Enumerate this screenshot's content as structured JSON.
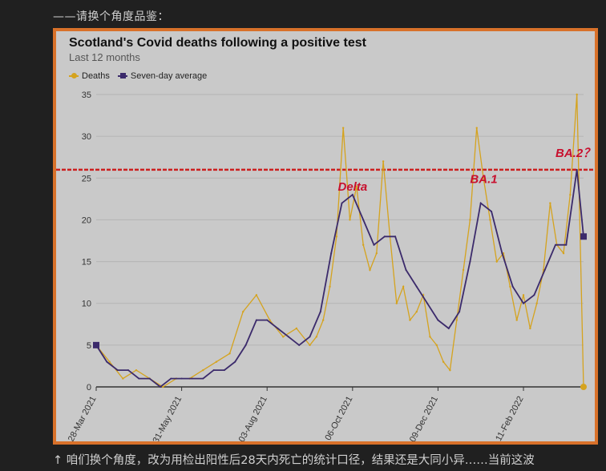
{
  "header": {
    "text": "——请换个角度品鉴："
  },
  "footer": {
    "text": "↑ 咱们换个角度，改为用检出阳性后28天内死亡的统计口径，结果还是大同小异……当前这波"
  },
  "colors": {
    "frame": "#d8712a",
    "plot_bg": "#c9c9c9",
    "deaths": "#d5a31e",
    "average": "#3b2a6b",
    "threshold": "#cc1f1f",
    "annotation": "#c8102e"
  },
  "chart_data": {
    "type": "line",
    "title": "Scotland's Covid deaths following a positive test",
    "subtitle": "Last 12 months",
    "xlabel": "",
    "ylabel": "",
    "ylim": [
      0,
      35
    ],
    "yticks": [
      0,
      5,
      10,
      15,
      20,
      25,
      30,
      35
    ],
    "grid": true,
    "legend_placement": "top-left",
    "x_start": "2021-03-28",
    "x_end": "2022-03-28",
    "xticks": [
      "28-Mar 2021",
      "31-May 2021",
      "03-Aug 2021",
      "06-Oct 2021",
      "09-Dec 2021",
      "11-Feb 2022"
    ],
    "xtick_dates": [
      "2021-03-28",
      "2021-05-31",
      "2021-08-03",
      "2021-10-06",
      "2021-12-09",
      "2022-02-11"
    ],
    "series": [
      {
        "name": "Deaths",
        "x": [
          "2021-03-28",
          "2021-04-07",
          "2021-04-17",
          "2021-04-27",
          "2021-05-07",
          "2021-05-17",
          "2021-05-27",
          "2021-06-06",
          "2021-06-16",
          "2021-06-26",
          "2021-07-06",
          "2021-07-16",
          "2021-07-26",
          "2021-08-05",
          "2021-08-15",
          "2021-08-25",
          "2021-09-04",
          "2021-09-09",
          "2021-09-14",
          "2021-09-19",
          "2021-09-24",
          "2021-09-29",
          "2021-10-04",
          "2021-10-09",
          "2021-10-14",
          "2021-10-19",
          "2021-10-24",
          "2021-10-29",
          "2021-11-03",
          "2021-11-08",
          "2021-11-13",
          "2021-11-18",
          "2021-11-23",
          "2021-11-28",
          "2021-12-03",
          "2021-12-08",
          "2021-12-13",
          "2021-12-18",
          "2021-12-23",
          "2021-12-28",
          "2022-01-02",
          "2022-01-07",
          "2022-01-12",
          "2022-01-17",
          "2022-01-22",
          "2022-01-27",
          "2022-02-01",
          "2022-02-06",
          "2022-02-11",
          "2022-02-16",
          "2022-02-21",
          "2022-02-26",
          "2022-03-03",
          "2022-03-08",
          "2022-03-13",
          "2022-03-18",
          "2022-03-23",
          "2022-03-28"
        ],
        "values": [
          5,
          3,
          1,
          2,
          1,
          0,
          1,
          1,
          2,
          3,
          4,
          9,
          11,
          8,
          6,
          7,
          5,
          6,
          8,
          12,
          18,
          31,
          20,
          24,
          17,
          14,
          16,
          27,
          18,
          10,
          12,
          8,
          9,
          11,
          6,
          5,
          3,
          2,
          8,
          14,
          20,
          31,
          25,
          20,
          15,
          16,
          12,
          8,
          11,
          7,
          10,
          14,
          22,
          17,
          16,
          23,
          35,
          0
        ]
      },
      {
        "name": "Seven-day average",
        "x": [
          "2021-03-28",
          "2021-04-05",
          "2021-04-13",
          "2021-04-21",
          "2021-04-29",
          "2021-05-07",
          "2021-05-15",
          "2021-05-23",
          "2021-05-31",
          "2021-06-08",
          "2021-06-16",
          "2021-06-24",
          "2021-07-02",
          "2021-07-10",
          "2021-07-18",
          "2021-07-26",
          "2021-08-03",
          "2021-08-11",
          "2021-08-19",
          "2021-08-27",
          "2021-09-04",
          "2021-09-12",
          "2021-09-20",
          "2021-09-28",
          "2021-10-06",
          "2021-10-14",
          "2021-10-22",
          "2021-10-30",
          "2021-11-07",
          "2021-11-15",
          "2021-11-23",
          "2021-12-01",
          "2021-12-09",
          "2021-12-17",
          "2021-12-25",
          "2022-01-02",
          "2022-01-10",
          "2022-01-18",
          "2022-01-26",
          "2022-02-03",
          "2022-02-11",
          "2022-02-19",
          "2022-02-27",
          "2022-03-07",
          "2022-03-15",
          "2022-03-23",
          "2022-03-28"
        ],
        "values": [
          5,
          3,
          2,
          2,
          1,
          1,
          0,
          1,
          1,
          1,
          1,
          2,
          2,
          3,
          5,
          8,
          8,
          7,
          6,
          5,
          6,
          9,
          16,
          22,
          23,
          20,
          17,
          18,
          18,
          14,
          12,
          10,
          8,
          7,
          9,
          15,
          22,
          21,
          16,
          12,
          10,
          11,
          14,
          17,
          17,
          26,
          18
        ]
      }
    ],
    "threshold_line": {
      "y": 26
    },
    "annotations": [
      {
        "text": "Delta",
        "x": "2021-09-25",
        "y": 23.5
      },
      {
        "text": "BA.1",
        "x": "2022-01-02",
        "y": 24.4
      },
      {
        "text": "BA.2？？",
        "x": "2022-03-07",
        "y": 27.5
      }
    ]
  }
}
